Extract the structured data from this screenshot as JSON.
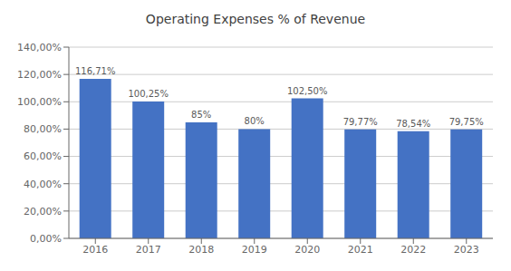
{
  "chart_data": {
    "type": "bar",
    "title": "Operating Expenses % of Revenue",
    "categories": [
      "2016",
      "2017",
      "2018",
      "2019",
      "2020",
      "2021",
      "2022",
      "2023"
    ],
    "values": [
      116.71,
      100.25,
      85.0,
      80.0,
      102.5,
      79.77,
      78.54,
      79.75
    ],
    "value_labels": [
      "116,71%",
      "100,25%",
      "85%",
      "80%",
      "102,50%",
      "79,77%",
      "78,54%",
      "79,75%"
    ],
    "data_labels": true,
    "color": "#4472C4",
    "ylim": [
      0,
      140
    ],
    "yticks": [
      {
        "value": 0,
        "label": "0,00%"
      },
      {
        "value": 20,
        "label": "20,00%"
      },
      {
        "value": 40,
        "label": "40,00%"
      },
      {
        "value": 60,
        "label": "60,00%"
      },
      {
        "value": 80,
        "label": "80,00%"
      },
      {
        "value": 100,
        "label": "100,00%"
      },
      {
        "value": 120,
        "label": "120,00%"
      },
      {
        "value": 140,
        "label": "140,00%"
      }
    ],
    "grid": true
  }
}
